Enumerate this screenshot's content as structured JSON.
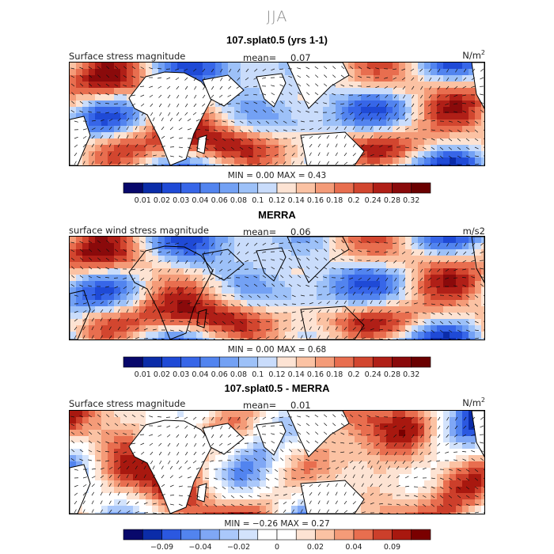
{
  "season": "JJA",
  "panels": [
    {
      "title": "107.splat0.5 (yrs 1-1)",
      "label": "Surface stress magnitude",
      "mean_label": "mean=",
      "mean_value": "0.07",
      "unit_base": "N/m",
      "unit_sup": "2",
      "minmax": "MIN =    0.00  MAX =    0.43",
      "scheme": "sequential",
      "colorbar_ticks": [
        "0.01",
        "0.02",
        "0.03",
        "0.04",
        "0.06",
        "0.08",
        "0.1",
        "0.12",
        "0.14",
        "0.16",
        "0.18",
        "0.2",
        "0.24",
        "0.28",
        "0.32"
      ]
    },
    {
      "title": "MERRA",
      "label": "surface wind stress magnitude",
      "mean_label": "mean=",
      "mean_value": "0.06",
      "unit_base": "m/s2",
      "unit_sup": "",
      "minmax": "MIN =    0.00  MAX =    0.68",
      "scheme": "sequential",
      "colorbar_ticks": [
        "0.01",
        "0.02",
        "0.03",
        "0.04",
        "0.06",
        "0.08",
        "0.1",
        "0.12",
        "0.14",
        "0.16",
        "0.18",
        "0.2",
        "0.24",
        "0.28",
        "0.32"
      ]
    },
    {
      "title": "107.splat0.5 - MERRA",
      "label": "Surface stress magnitude",
      "mean_label": "mean=",
      "mean_value": "0.01",
      "unit_base": "N/m",
      "unit_sup": "2",
      "minmax": "MIN =  −0.26  MAX =    0.27",
      "scheme": "diverging",
      "colorbar_ticks": [
        "−0.09",
        "−0.04",
        "−0.02",
        "0",
        "0.02",
        "0.04",
        "0.09"
      ]
    }
  ],
  "colors": {
    "sequential": [
      "#08086b",
      "#0b2ca8",
      "#1f4ad6",
      "#3766e8",
      "#5284ef",
      "#73a1f4",
      "#9dc1f8",
      "#c9dcfb",
      "#fde3d3",
      "#fbc2a3",
      "#f49b78",
      "#e86e4f",
      "#d2462f",
      "#b01f17",
      "#8a0a0b",
      "#6a0000"
    ],
    "diverging": [
      "#08086b",
      "#0b2ca8",
      "#2b58e0",
      "#5284ef",
      "#7fa7f5",
      "#aac8fa",
      "#d3e3fc",
      "#ffffff",
      "#ffffff",
      "#fde3d3",
      "#fbc2a3",
      "#f49b78",
      "#e86e4f",
      "#cc3f2b",
      "#a8180f",
      "#7a0000"
    ]
  },
  "chart_data": [
    {
      "type": "heatmap",
      "title": "107.splat0.5 (yrs 1-1)",
      "variable": "Surface stress magnitude",
      "units": "N/m^2",
      "season": "JJA",
      "mean": 0.07,
      "min": 0.0,
      "max": 0.43,
      "colorbar_levels": [
        0.01,
        0.02,
        0.03,
        0.04,
        0.06,
        0.08,
        0.1,
        0.12,
        0.14,
        0.16,
        0.18,
        0.2,
        0.24,
        0.28,
        0.32
      ],
      "lon_range": [
        0,
        360
      ],
      "lat_range": [
        -40,
        40
      ]
    },
    {
      "type": "heatmap",
      "title": "MERRA",
      "variable": "surface wind stress magnitude",
      "units": "m/s2",
      "season": "JJA",
      "mean": 0.06,
      "min": 0.0,
      "max": 0.68,
      "colorbar_levels": [
        0.01,
        0.02,
        0.03,
        0.04,
        0.06,
        0.08,
        0.1,
        0.12,
        0.14,
        0.16,
        0.18,
        0.2,
        0.24,
        0.28,
        0.32
      ],
      "lon_range": [
        0,
        360
      ],
      "lat_range": [
        -40,
        40
      ]
    },
    {
      "type": "heatmap",
      "title": "107.splat0.5 - MERRA",
      "variable": "Surface stress magnitude",
      "units": "N/m^2",
      "season": "JJA",
      "mean": 0.01,
      "min": -0.26,
      "max": 0.27,
      "colorbar_levels": [
        -0.09,
        -0.04,
        -0.02,
        0,
        0.02,
        0.04,
        0.09
      ],
      "lon_range": [
        0,
        360
      ],
      "lat_range": [
        -40,
        40
      ]
    }
  ]
}
